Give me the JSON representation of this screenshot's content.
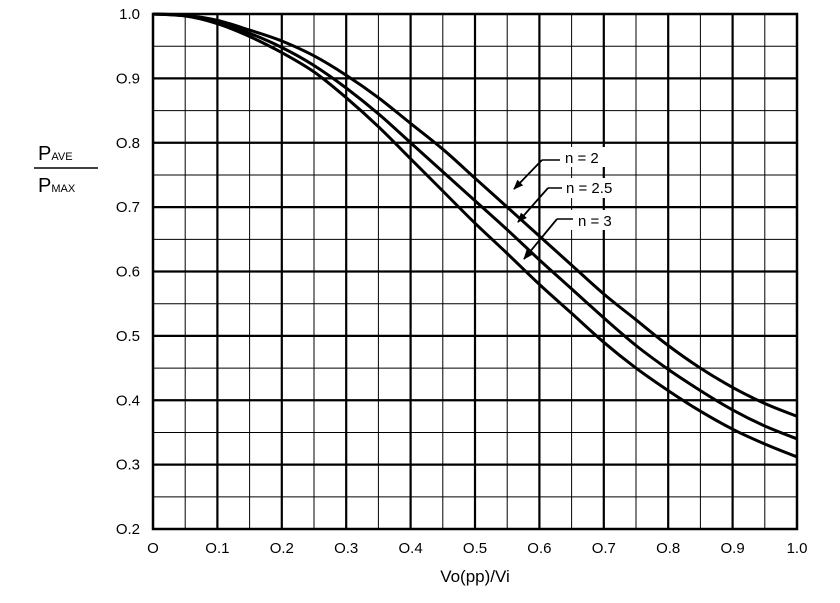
{
  "chart_data": {
    "type": "line",
    "title": "",
    "xlabel": "Vo(pp)/Vi",
    "ylabel": {
      "top": "P",
      "top_sub": "AVE",
      "bottom": "P",
      "bottom_sub": "MAX"
    },
    "xlim": [
      0,
      1.0
    ],
    "ylim": [
      0.2,
      1.0
    ],
    "x_tick_labels": [
      "O",
      "O.1",
      "O.2",
      "O.3",
      "O.4",
      "O.5",
      "O.6",
      "O.7",
      "O.8",
      "O.9",
      "1.0"
    ],
    "y_tick_labels": [
      "O.2",
      "O.3",
      "O.4",
      "O.5",
      "O.6",
      "O.7",
      "O.8",
      "O.9",
      "1.0"
    ],
    "grid": true,
    "x": [
      0,
      0.05,
      0.1,
      0.15,
      0.2,
      0.25,
      0.3,
      0.35,
      0.4,
      0.45,
      0.5,
      0.55,
      0.6,
      0.65,
      0.7,
      0.75,
      0.8,
      0.85,
      0.9,
      0.95,
      1.0
    ],
    "series": [
      {
        "name": "n = 2",
        "values": [
          1.0,
          0.998,
          0.99,
          0.975,
          0.958,
          0.935,
          0.905,
          0.87,
          0.83,
          0.79,
          0.745,
          0.7,
          0.655,
          0.61,
          0.565,
          0.525,
          0.485,
          0.45,
          0.42,
          0.395,
          0.375
        ]
      },
      {
        "name": "n = 2.5",
        "values": [
          1.0,
          0.997,
          0.987,
          0.97,
          0.948,
          0.92,
          0.885,
          0.845,
          0.8,
          0.755,
          0.71,
          0.665,
          0.618,
          0.573,
          0.528,
          0.485,
          0.448,
          0.415,
          0.385,
          0.36,
          0.34
        ]
      },
      {
        "name": "n = 3",
        "values": [
          1.0,
          0.997,
          0.985,
          0.965,
          0.94,
          0.91,
          0.87,
          0.825,
          0.775,
          0.725,
          0.675,
          0.628,
          0.58,
          0.535,
          0.49,
          0.45,
          0.415,
          0.383,
          0.355,
          0.332,
          0.312
        ]
      }
    ]
  }
}
